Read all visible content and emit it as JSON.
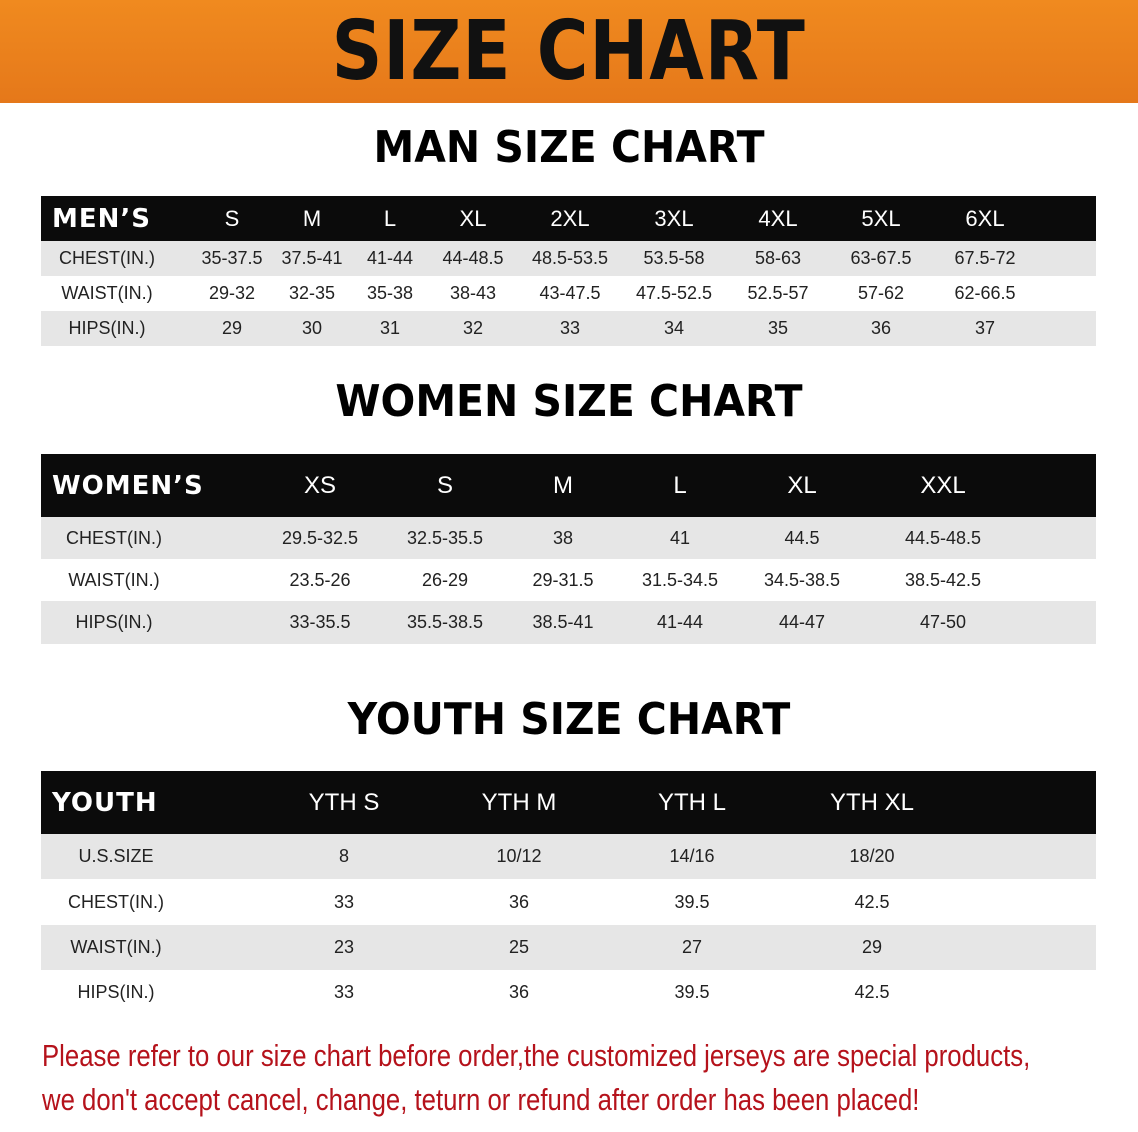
{
  "banner": {
    "title": "SIZE CHART"
  },
  "colors": {
    "banner": "#e8821e",
    "header_row": "#0b0b0b",
    "stripe": "#e6e6e6",
    "note": "#b5121b"
  },
  "men": {
    "title": "MAN SIZE CHART",
    "header": "MEN’S",
    "sizes": [
      "S",
      "M",
      "L",
      "XL",
      "2XL",
      "3XL",
      "4XL",
      "5XL",
      "6XL"
    ],
    "rows": [
      {
        "label": "CHEST(IN.)",
        "values": [
          "35-37.5",
          "37.5-41",
          "41-44",
          "44-48.5",
          "48.5-53.5",
          "53.5-58",
          "58-63",
          "63-67.5",
          "67.5-72"
        ]
      },
      {
        "label": "WAIST(IN.)",
        "values": [
          "29-32",
          "32-35",
          "35-38",
          "38-43",
          "43-47.5",
          "47.5-52.5",
          "52.5-57",
          "57-62",
          "62-66.5"
        ]
      },
      {
        "label": "HIPS(IN.)",
        "values": [
          "29",
          "30",
          "31",
          "32",
          "33",
          "34",
          "35",
          "36",
          "37"
        ]
      }
    ]
  },
  "women": {
    "title": "WOMEN SIZE CHART",
    "header": "WOMEN’S",
    "sizes": [
      "XS",
      "S",
      "M",
      "L",
      "XL",
      "XXL"
    ],
    "rows": [
      {
        "label": "CHEST(IN.)",
        "values": [
          "29.5-32.5",
          "32.5-35.5",
          "38",
          "41",
          "44.5",
          "44.5-48.5"
        ]
      },
      {
        "label": "WAIST(IN.)",
        "values": [
          "23.5-26",
          "26-29",
          "29-31.5",
          "31.5-34.5",
          "34.5-38.5",
          "38.5-42.5"
        ]
      },
      {
        "label": "HIPS(IN.)",
        "values": [
          "33-35.5",
          "35.5-38.5",
          "38.5-41",
          "41-44",
          "44-47",
          "47-50"
        ]
      }
    ]
  },
  "youth": {
    "title": "YOUTH SIZE CHART",
    "header": "YOUTH",
    "sizes": [
      "YTH S",
      "YTH M",
      "YTH L",
      "YTH XL"
    ],
    "rows": [
      {
        "label": "U.S.SIZE",
        "values": [
          "8",
          "10/12",
          "14/16",
          "18/20"
        ]
      },
      {
        "label": "CHEST(IN.)",
        "values": [
          "33",
          "36",
          "39.5",
          "42.5"
        ]
      },
      {
        "label": "WAIST(IN.)",
        "values": [
          "23",
          "25",
          "27",
          "29"
        ]
      },
      {
        "label": "HIPS(IN.)",
        "values": [
          "33",
          "36",
          "39.5",
          "42.5"
        ]
      }
    ]
  },
  "note": {
    "line1": "Please refer to our size chart before order,the customized jerseys are special products,",
    "line2": "we don't accept cancel, change, teturn or refund after order has been placed!"
  }
}
